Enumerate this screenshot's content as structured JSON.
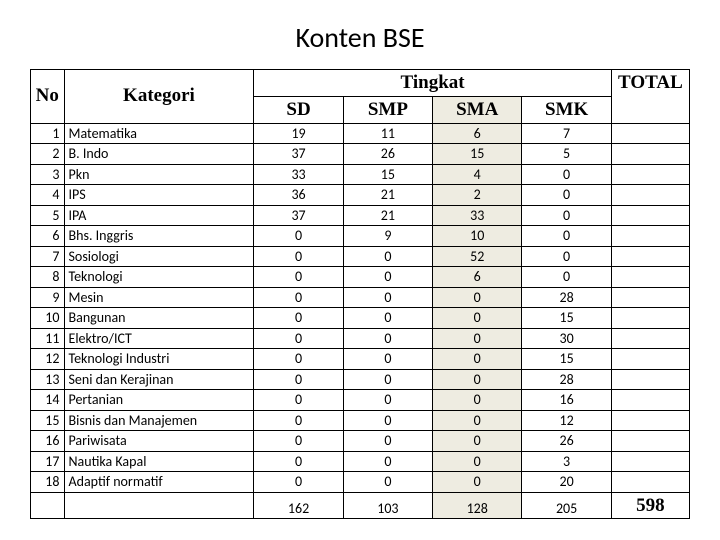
{
  "title": "Konten BSE",
  "headers": {
    "no": "No",
    "kategori": "Kategori",
    "tingkat": "Tingkat",
    "sd": "SD",
    "smp": "SMP",
    "sma": "SMA",
    "smk": "SMK",
    "total": "TOTAL"
  },
  "rows": [
    {
      "no": "1",
      "cat": "Matematika",
      "sd": "19",
      "smp": "11",
      "sma": "6",
      "smk": "7",
      "total": ""
    },
    {
      "no": "2",
      "cat": "B. Indo",
      "sd": "37",
      "smp": "26",
      "sma": "15",
      "smk": "5",
      "total": ""
    },
    {
      "no": "3",
      "cat": "Pkn",
      "sd": "33",
      "smp": "15",
      "sma": "4",
      "smk": "0",
      "total": ""
    },
    {
      "no": "4",
      "cat": "IPS",
      "sd": "36",
      "smp": "21",
      "sma": "2",
      "smk": "0",
      "total": ""
    },
    {
      "no": "5",
      "cat": "IPA",
      "sd": "37",
      "smp": "21",
      "sma": "33",
      "smk": "0",
      "total": ""
    },
    {
      "no": "6",
      "cat": "Bhs. Inggris",
      "sd": "0",
      "smp": "9",
      "sma": "10",
      "smk": "0",
      "total": ""
    },
    {
      "no": "7",
      "cat": "Sosiologi",
      "sd": "0",
      "smp": "0",
      "sma": "52",
      "smk": "0",
      "total": ""
    },
    {
      "no": "8",
      "cat": "Teknologi",
      "sd": "0",
      "smp": "0",
      "sma": "6",
      "smk": "0",
      "total": ""
    },
    {
      "no": "9",
      "cat": "Mesin",
      "sd": "0",
      "smp": "0",
      "sma": "0",
      "smk": "28",
      "total": ""
    },
    {
      "no": "10",
      "cat": "Bangunan",
      "sd": "0",
      "smp": "0",
      "sma": "0",
      "smk": "15",
      "total": ""
    },
    {
      "no": "11",
      "cat": "Elektro/ICT",
      "sd": "0",
      "smp": "0",
      "sma": "0",
      "smk": "30",
      "total": ""
    },
    {
      "no": "12",
      "cat": "Teknologi Industri",
      "sd": "0",
      "smp": "0",
      "sma": "0",
      "smk": "15",
      "total": ""
    },
    {
      "no": "13",
      "cat": "Seni dan Kerajinan",
      "sd": "0",
      "smp": "0",
      "sma": "0",
      "smk": "28",
      "total": ""
    },
    {
      "no": "14",
      "cat": "Pertanian",
      "sd": "0",
      "smp": "0",
      "sma": "0",
      "smk": "16",
      "total": ""
    },
    {
      "no": "15",
      "cat": "Bisnis dan Manajemen",
      "sd": "0",
      "smp": "0",
      "sma": "0",
      "smk": "12",
      "total": ""
    },
    {
      "no": "16",
      "cat": "Pariwisata",
      "sd": "0",
      "smp": "0",
      "sma": "0",
      "smk": "26",
      "total": ""
    },
    {
      "no": "17",
      "cat": "Nautika Kapal",
      "sd": "0",
      "smp": "0",
      "sma": "0",
      "smk": "3",
      "total": ""
    },
    {
      "no": "18",
      "cat": "Adaptif normatif",
      "sd": "0",
      "smp": "0",
      "sma": "0",
      "smk": "20",
      "total": ""
    }
  ],
  "footer": {
    "sd": "162",
    "smp": "103",
    "sma": "128",
    "smk": "205",
    "total": "598"
  },
  "colors": {
    "shade_bg": "#eeece1",
    "border": "#000000",
    "text": "#000000",
    "background": "#ffffff"
  },
  "table_type": "table"
}
